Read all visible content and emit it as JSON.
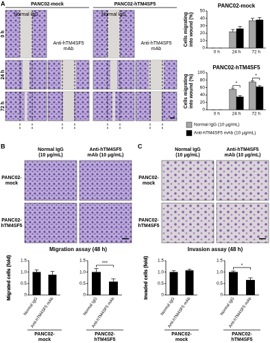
{
  "panel_a": {
    "label": "A",
    "columns": [
      "PANC02-mock",
      "PANC02-hTM4SF5"
    ],
    "treatments": [
      [
        "Normal IgG"
      ],
      [
        "Anti-hTM4SF5",
        "mAb"
      ]
    ],
    "rows": [
      "0 h",
      "24 h",
      "72 h"
    ]
  },
  "panel_b": {
    "label": "B",
    "columns": [
      [
        "Normal IgG",
        "(10 μg/mL)"
      ],
      [
        "Anti-hTM4SF5",
        "mAb (10 μg/mL)"
      ]
    ],
    "rows": [
      [
        "PANC02-",
        "mock"
      ],
      [
        "PANC02-",
        "hTM4SF5"
      ]
    ],
    "caption": "Migration assay (48 h)"
  },
  "panel_c": {
    "label": "C",
    "columns": [
      [
        "Normal IgG",
        "(10 μg/mL)"
      ],
      [
        "Anti-hTM4SF5",
        "mAb (10 μg/mL)"
      ]
    ],
    "rows": [
      [
        "PANC02-",
        "mock"
      ],
      [
        "PANC02-",
        "hTM4SF5"
      ]
    ],
    "caption": "Invasion assay (48 h)"
  },
  "chart_data": [
    {
      "type": "bar",
      "title": "PANC02-mock",
      "y_label": [
        "Cells migrating",
        "into wound (%)"
      ],
      "categories": [
        "0 h",
        "24 h",
        "72 h"
      ],
      "series": [
        {
          "color": "#a6a6a6",
          "values": [
            0,
            22,
            37
          ],
          "errors": [
            0,
            3,
            3
          ]
        },
        {
          "color": "#000000",
          "values": [
            0,
            26,
            38
          ],
          "errors": [
            0,
            3,
            3
          ]
        }
      ],
      "ylim": [
        0,
        50
      ],
      "yticks": [
        0,
        10,
        20,
        30,
        40,
        50
      ]
    },
    {
      "type": "bar",
      "title": "PANC02-hTM4SF5",
      "y_label": [
        "Cells migrating",
        "into wound (%)"
      ],
      "categories": [
        "0 h",
        "24 h",
        "72 h"
      ],
      "series": [
        {
          "name": "Normal IgG (10 μg/mL)",
          "color": "#a6a6a6",
          "values": [
            0,
            55,
            75
          ],
          "errors": [
            0,
            3,
            3
          ]
        },
        {
          "name": "Anti-hTM4SF5 mAb (10 μg/mL)",
          "color": "#000000",
          "values": [
            0,
            35,
            62
          ],
          "errors": [
            0,
            3,
            3
          ]
        }
      ],
      "annotations": [
        null,
        "*",
        "*"
      ],
      "ylim": [
        0,
        100
      ],
      "yticks": [
        0,
        20,
        40,
        60,
        80,
        100
      ]
    },
    {
      "type": "bar",
      "y_label": "Migrated cells (fold)",
      "categories": [
        "Normal IgG",
        "Anti-hTM4SF5 mAb"
      ],
      "group_label": [
        "PANC02-",
        "mock"
      ],
      "series": [
        {
          "color": "#000000",
          "values": [
            1.0,
            0.88
          ],
          "errors": [
            0.1,
            0.15
          ]
        }
      ],
      "ylim": [
        0,
        1.5
      ],
      "yticks": [
        0,
        0.5,
        {
          "value": 1,
          "label": "1.0"
        },
        1.5
      ]
    },
    {
      "type": "bar",
      "y_label": "Migrated cells (fold)",
      "categories": [
        "Normal IgG",
        "Anti-hTM4SF5 mAb"
      ],
      "group_label": [
        "PANC02-",
        "hTM4SF5"
      ],
      "series": [
        {
          "color": "#000000",
          "values": [
            1.0,
            0.58
          ],
          "errors": [
            0.15,
            0.12
          ]
        }
      ],
      "annotation": "***",
      "ylim": [
        0,
        1.5
      ],
      "yticks": [
        0,
        0.5,
        {
          "value": 1,
          "label": "1.0"
        },
        1.5
      ]
    },
    {
      "type": "bar",
      "y_label": "Invaded cells (fold)",
      "categories": [
        "Normal IgG",
        "Anti-hTM4SF5 mAb"
      ],
      "group_label": [
        "PANC02-",
        "mock"
      ],
      "series": [
        {
          "color": "#000000",
          "values": [
            1.0,
            1.07
          ],
          "errors": [
            0.06,
            0.06
          ]
        }
      ],
      "ylim": [
        0,
        1.5
      ],
      "yticks": [
        0,
        0.5,
        {
          "value": 1,
          "label": "1.0"
        },
        1.5
      ]
    },
    {
      "type": "bar",
      "y_label": "Invaded cells (fold)",
      "categories": [
        "Normal IgG",
        "Anti-hTM4SF5 mAb"
      ],
      "group_label": [
        "PANC02-",
        "hTM4SF5"
      ],
      "series": [
        {
          "color": "#000000",
          "values": [
            1.0,
            0.65
          ],
          "errors": [
            0.05,
            0.1
          ]
        }
      ],
      "annotation": "*",
      "ylim": [
        0,
        1.5
      ],
      "yticks": [
        0,
        0.5,
        {
          "value": 1,
          "label": "1.0"
        },
        1.5
      ]
    }
  ]
}
